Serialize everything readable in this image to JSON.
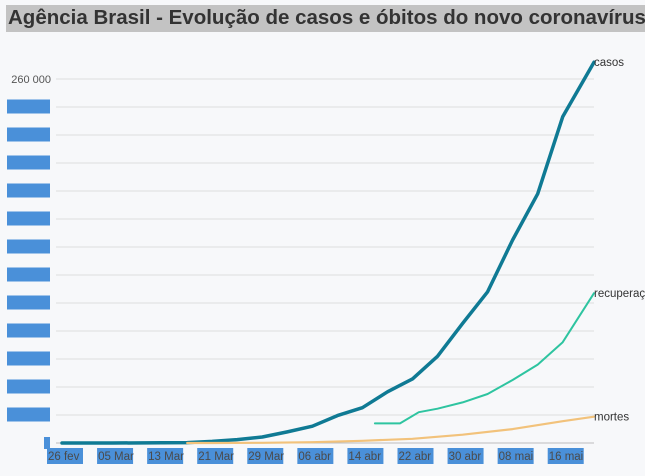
{
  "title": "Agência Brasil - Evolução de casos e óbitos do novo coronavírus",
  "colors": {
    "title_bg": "#c3c3c3",
    "background": "#f7f8fa",
    "grid": "#dedede",
    "mask": "#4a90d9"
  },
  "chart_data": {
    "type": "line",
    "title": "Agência Brasil - Evolução de casos e óbitos do novo coronavírus",
    "xlabel": "",
    "ylabel": "",
    "x_range": [
      "2020-02-26",
      "2020-05-21"
    ],
    "ylim": [
      0,
      280000
    ],
    "grid": true,
    "y_ticks": [
      0,
      20000,
      40000,
      60000,
      80000,
      100000,
      120000,
      140000,
      160000,
      180000,
      200000,
      220000,
      240000,
      260000
    ],
    "y_tick_labels": [
      "",
      "",
      "",
      "",
      "",
      "",
      "",
      "",
      "",
      "",
      "",
      "",
      "",
      "260 000"
    ],
    "x_ticks": [
      "2020-02-26",
      "2020-03-05",
      "2020-03-13",
      "2020-03-21",
      "2020-03-29",
      "2020-04-06",
      "2020-04-14",
      "2020-04-22",
      "2020-04-30",
      "2020-05-08",
      "2020-05-16"
    ],
    "x_tick_labels": [
      "26 fev",
      "05 Mar",
      "13 Mar",
      "21 Mar",
      "29 Mar",
      "06 abr",
      "14 abr",
      "22 abr",
      "30 abr",
      "08 mai",
      "16 mai"
    ],
    "series": [
      {
        "name": "casos",
        "color": "#0f7a94",
        "width": 3.5,
        "points": [
          [
            "2020-02-26",
            1
          ],
          [
            "2020-03-05",
            8
          ],
          [
            "2020-03-13",
            150
          ],
          [
            "2020-03-17",
            290
          ],
          [
            "2020-03-21",
            1130
          ],
          [
            "2020-03-25",
            2430
          ],
          [
            "2020-03-29",
            4260
          ],
          [
            "2020-04-02",
            7900
          ],
          [
            "2020-04-06",
            12000
          ],
          [
            "2020-04-10",
            19600
          ],
          [
            "2020-04-14",
            25200
          ],
          [
            "2020-04-18",
            36600
          ],
          [
            "2020-04-22",
            45800
          ],
          [
            "2020-04-26",
            61900
          ],
          [
            "2020-04-30",
            85400
          ],
          [
            "2020-05-04",
            108000
          ],
          [
            "2020-05-08",
            145000
          ],
          [
            "2020-05-12",
            178000
          ],
          [
            "2020-05-16",
            233000
          ],
          [
            "2020-05-21",
            272000
          ]
        ]
      },
      {
        "name": "recuperados",
        "label": "recuperaç",
        "color": "#2ec4a0",
        "width": 2,
        "points": [
          [
            "2020-04-16",
            14000
          ],
          [
            "2020-04-20",
            14000
          ],
          [
            "2020-04-23",
            22000
          ],
          [
            "2020-04-26",
            24500
          ],
          [
            "2020-04-30",
            29000
          ],
          [
            "2020-05-04",
            35000
          ],
          [
            "2020-05-08",
            45000
          ],
          [
            "2020-05-12",
            56000
          ],
          [
            "2020-05-16",
            72000
          ],
          [
            "2020-05-21",
            107000
          ]
        ]
      },
      {
        "name": "mortes",
        "color": "#f2c27b",
        "width": 2.2,
        "points": [
          [
            "2020-03-17",
            1
          ],
          [
            "2020-03-21",
            20
          ],
          [
            "2020-03-29",
            140
          ],
          [
            "2020-04-06",
            550
          ],
          [
            "2020-04-14",
            1550
          ],
          [
            "2020-04-22",
            3000
          ],
          [
            "2020-04-30",
            5900
          ],
          [
            "2020-05-08",
            9900
          ],
          [
            "2020-05-16",
            15600
          ],
          [
            "2020-05-21",
            18800
          ]
        ]
      }
    ]
  }
}
